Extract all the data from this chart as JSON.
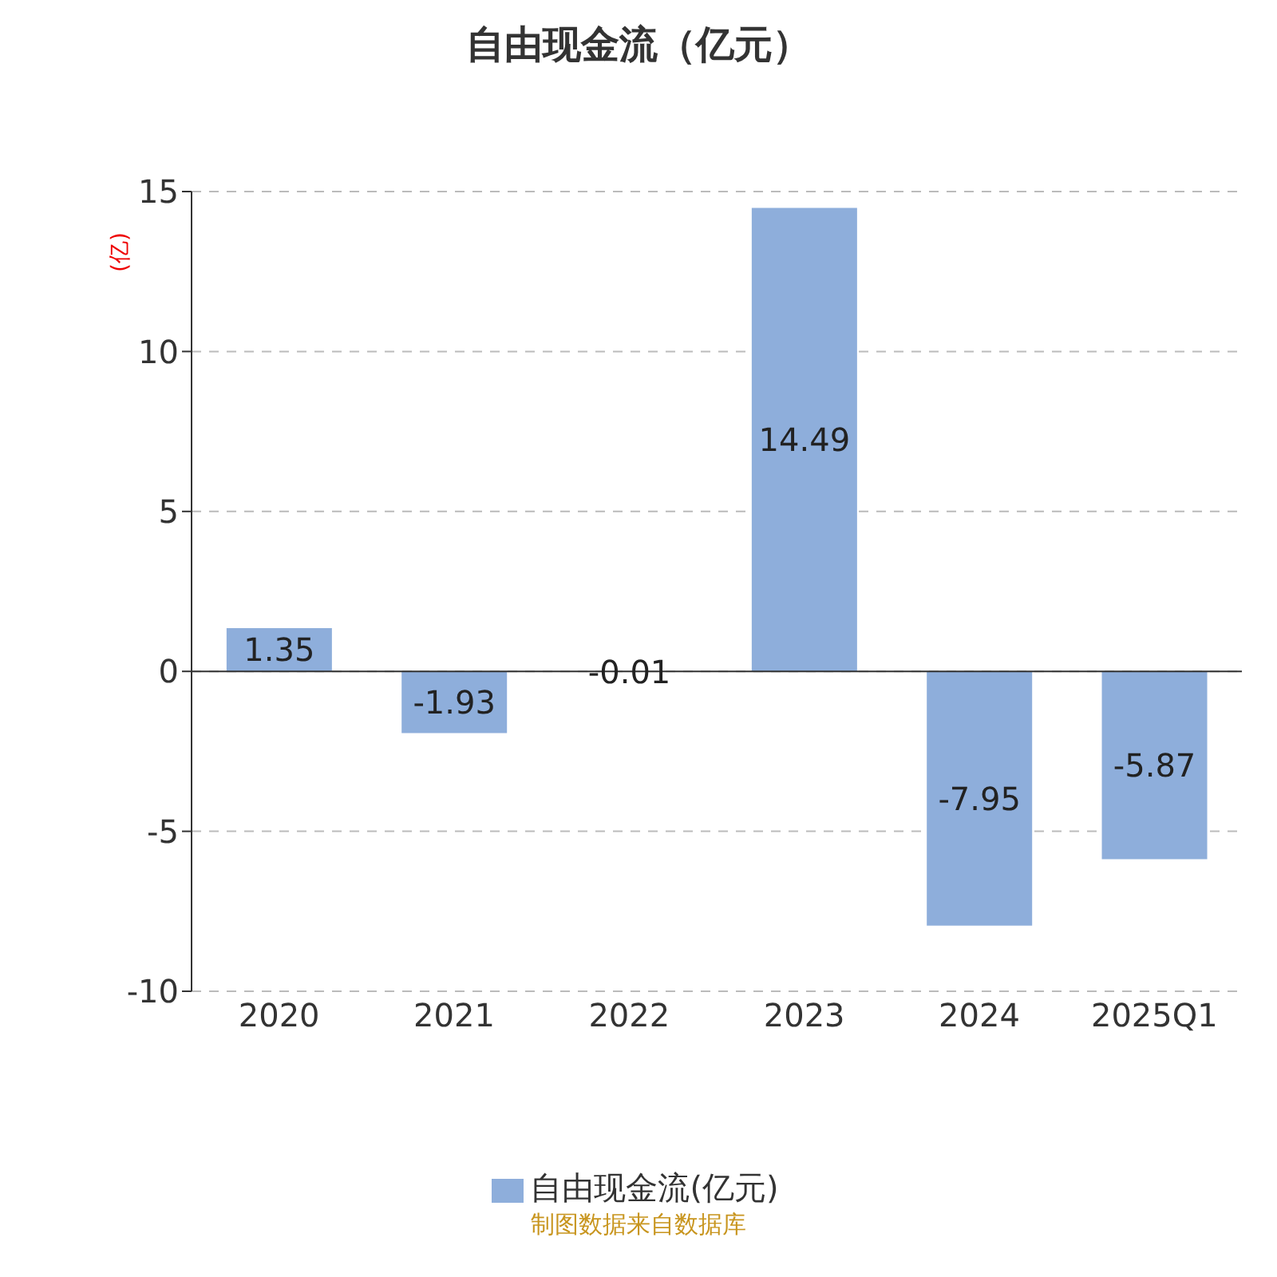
{
  "chart_data": {
    "type": "bar",
    "title": "自由现金流（亿元）",
    "ylabel": "(亿)",
    "categories": [
      "2020",
      "2021",
      "2022",
      "2023",
      "2024",
      "2025Q1"
    ],
    "series": [
      {
        "name": "自由现金流(亿元)",
        "color": "#8eaedb",
        "values": [
          1.35,
          -1.93,
          -0.01,
          14.49,
          -7.95,
          -5.87
        ]
      }
    ],
    "ylim": [
      -10,
      15
    ],
    "yticks": [
      -10,
      -5,
      0,
      5,
      10,
      15
    ],
    "grid": "y",
    "legend": "bottom",
    "data_labels": true,
    "annotations": [
      "制图数据来自数据库"
    ]
  }
}
